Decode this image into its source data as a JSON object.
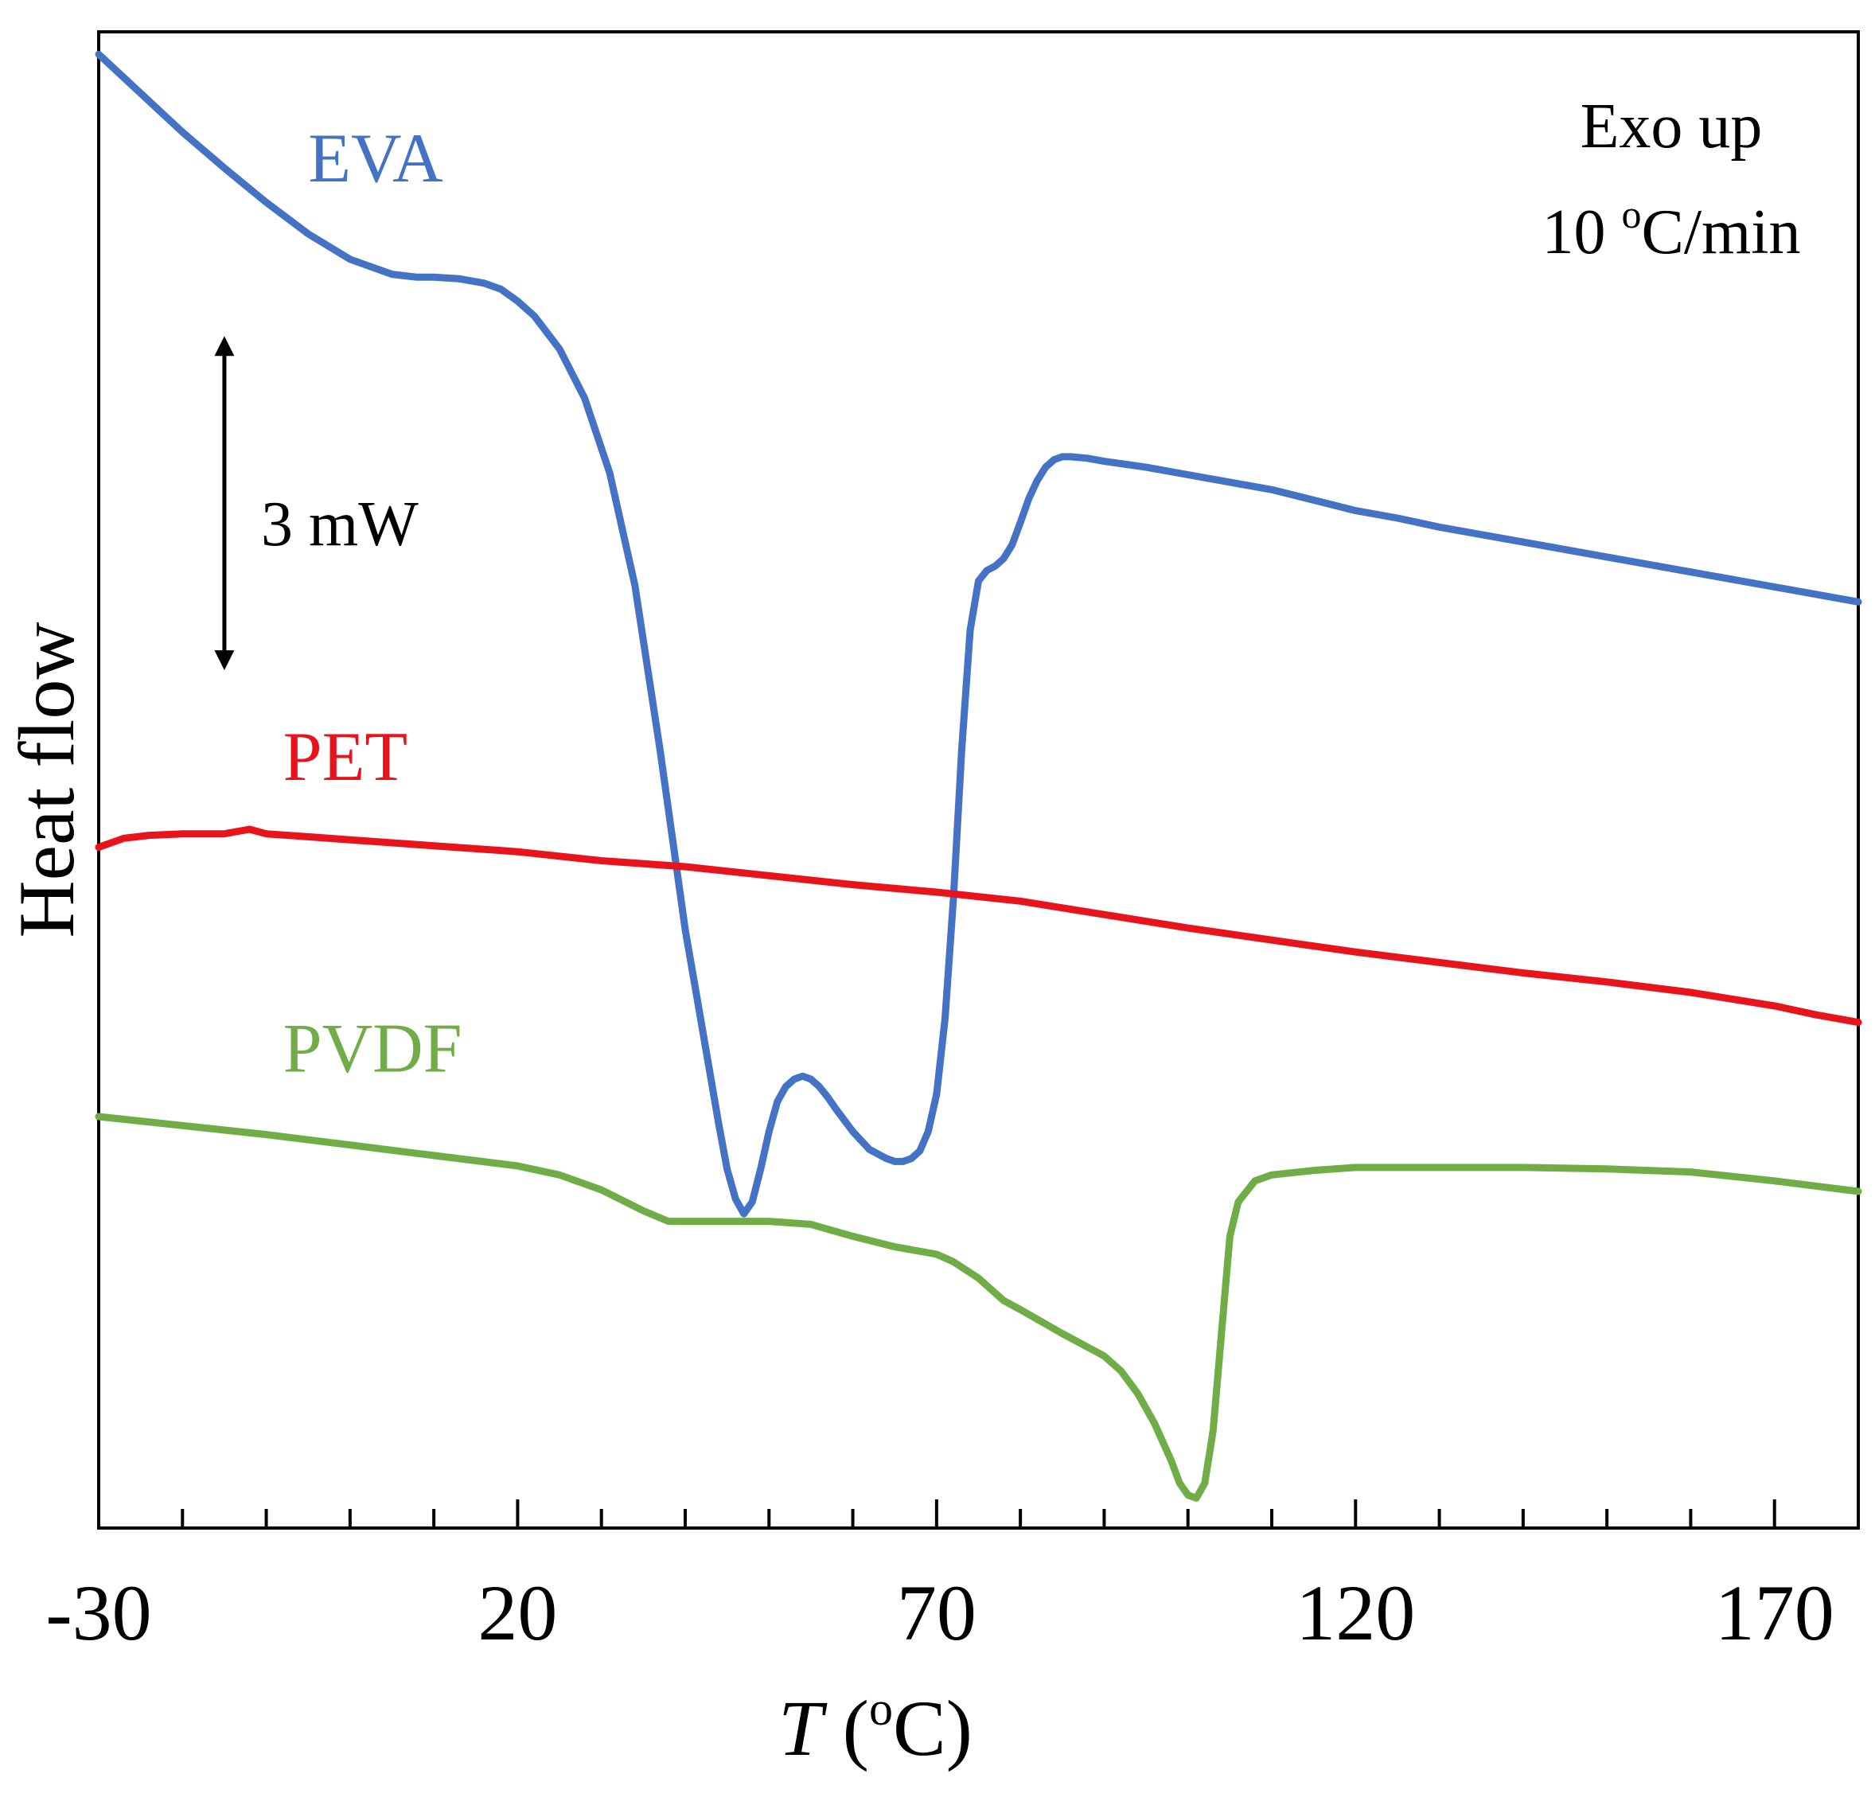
{
  "chart_data": {
    "type": "line",
    "title": "",
    "xlabel_italic": "T",
    "xlabel_rest": " (",
    "xlabel_sup": "o",
    "xlabel_end": "C)",
    "ylabel": "Heat flow",
    "xlim": [
      -30,
      180
    ],
    "ylim": [
      0,
      100
    ],
    "xticks": [
      -30,
      20,
      70,
      120,
      170
    ],
    "minor_tick_step": 10,
    "annotations": {
      "exo": "Exo up",
      "rate_value": "10 ",
      "rate_sup": "o",
      "rate_unit": "C/min",
      "scale": "3 mW"
    },
    "scale_bar_values": [
      79,
      58
    ],
    "series": [
      {
        "name": "EVA",
        "color": "#4472C4",
        "x": [
          -30,
          -25,
          -20,
          -15,
          -10,
          -5,
          0,
          5,
          8,
          10,
          13,
          16,
          18,
          20,
          22,
          25,
          28,
          31,
          34,
          37,
          40,
          42,
          44,
          45,
          46,
          47,
          48,
          49,
          50,
          51,
          52,
          53,
          54,
          55,
          56,
          57,
          58,
          60,
          62,
          64,
          65,
          66,
          67,
          68,
          69,
          70,
          71,
          72,
          73,
          74,
          75,
          76,
          77,
          78,
          79,
          80,
          81,
          82,
          83,
          84,
          85,
          86,
          88,
          90,
          95,
          100,
          105,
          110,
          115,
          120,
          125,
          130,
          140,
          150,
          160,
          170,
          180
        ],
        "y": [
          98.5,
          95.9,
          93.3,
          90.9,
          88.6,
          86.5,
          84.8,
          83.8,
          83.6,
          83.6,
          83.5,
          83.2,
          82.8,
          82.0,
          81.0,
          78.8,
          75.5,
          70.5,
          63.0,
          52.0,
          40.0,
          33.5,
          27.0,
          24.0,
          22.0,
          21.0,
          21.8,
          24.0,
          26.5,
          28.5,
          29.5,
          30.0,
          30.2,
          30.0,
          29.5,
          28.8,
          28.0,
          26.5,
          25.3,
          24.7,
          24.5,
          24.5,
          24.7,
          25.2,
          26.5,
          29.0,
          34.0,
          42.0,
          52.0,
          60.0,
          63.3,
          64.0,
          64.3,
          64.8,
          65.7,
          67.2,
          68.8,
          70.0,
          70.9,
          71.4,
          71.6,
          71.6,
          71.5,
          71.3,
          70.9,
          70.4,
          69.9,
          69.4,
          68.7,
          68.0,
          67.5,
          66.9,
          65.9,
          64.9,
          63.9,
          62.9,
          61.9
        ]
      },
      {
        "name": "PET",
        "color": "#E8141C",
        "x": [
          -30,
          -27,
          -24,
          -20,
          -15,
          -12,
          -10,
          -5,
          0,
          10,
          20,
          30,
          40,
          50,
          60,
          70,
          80,
          90,
          100,
          110,
          120,
          130,
          140,
          150,
          160,
          170,
          175,
          180
        ],
        "y": [
          45.5,
          46.1,
          46.3,
          46.4,
          46.4,
          46.7,
          46.4,
          46.2,
          46.0,
          45.6,
          45.2,
          44.6,
          44.2,
          43.6,
          43.0,
          42.5,
          41.9,
          41.0,
          40.1,
          39.3,
          38.5,
          37.8,
          37.1,
          36.5,
          35.8,
          34.9,
          34.3,
          33.8
        ]
      },
      {
        "name": "PVDF",
        "color": "#70AD47",
        "x": [
          -30,
          -20,
          -10,
          0,
          10,
          20,
          25,
          30,
          35,
          38,
          40,
          45,
          50,
          55,
          60,
          65,
          70,
          72,
          75,
          78,
          80,
          85,
          90,
          92,
          94,
          96,
          98,
          99,
          100,
          101,
          102,
          103,
          104,
          105,
          106,
          108,
          110,
          115,
          120,
          130,
          140,
          150,
          160,
          170,
          180
        ],
        "y": [
          27.5,
          26.9,
          26.3,
          25.6,
          24.9,
          24.2,
          23.6,
          22.6,
          21.2,
          20.5,
          20.5,
          20.5,
          20.5,
          20.3,
          19.5,
          18.8,
          18.3,
          17.8,
          16.7,
          15.2,
          14.6,
          13.0,
          11.5,
          10.5,
          9.0,
          7.0,
          4.5,
          3.0,
          2.2,
          2.0,
          3.0,
          6.5,
          13.0,
          19.5,
          21.8,
          23.2,
          23.6,
          23.9,
          24.1,
          24.1,
          24.1,
          24.0,
          23.8,
          23.2,
          22.5
        ]
      }
    ],
    "series_label_positions": [
      {
        "name": "EVA",
        "x": -5,
        "y": 90
      },
      {
        "name": "PET",
        "x": -8,
        "y": 50
      },
      {
        "name": "PVDF",
        "x": -8,
        "y": 30.5
      }
    ]
  }
}
